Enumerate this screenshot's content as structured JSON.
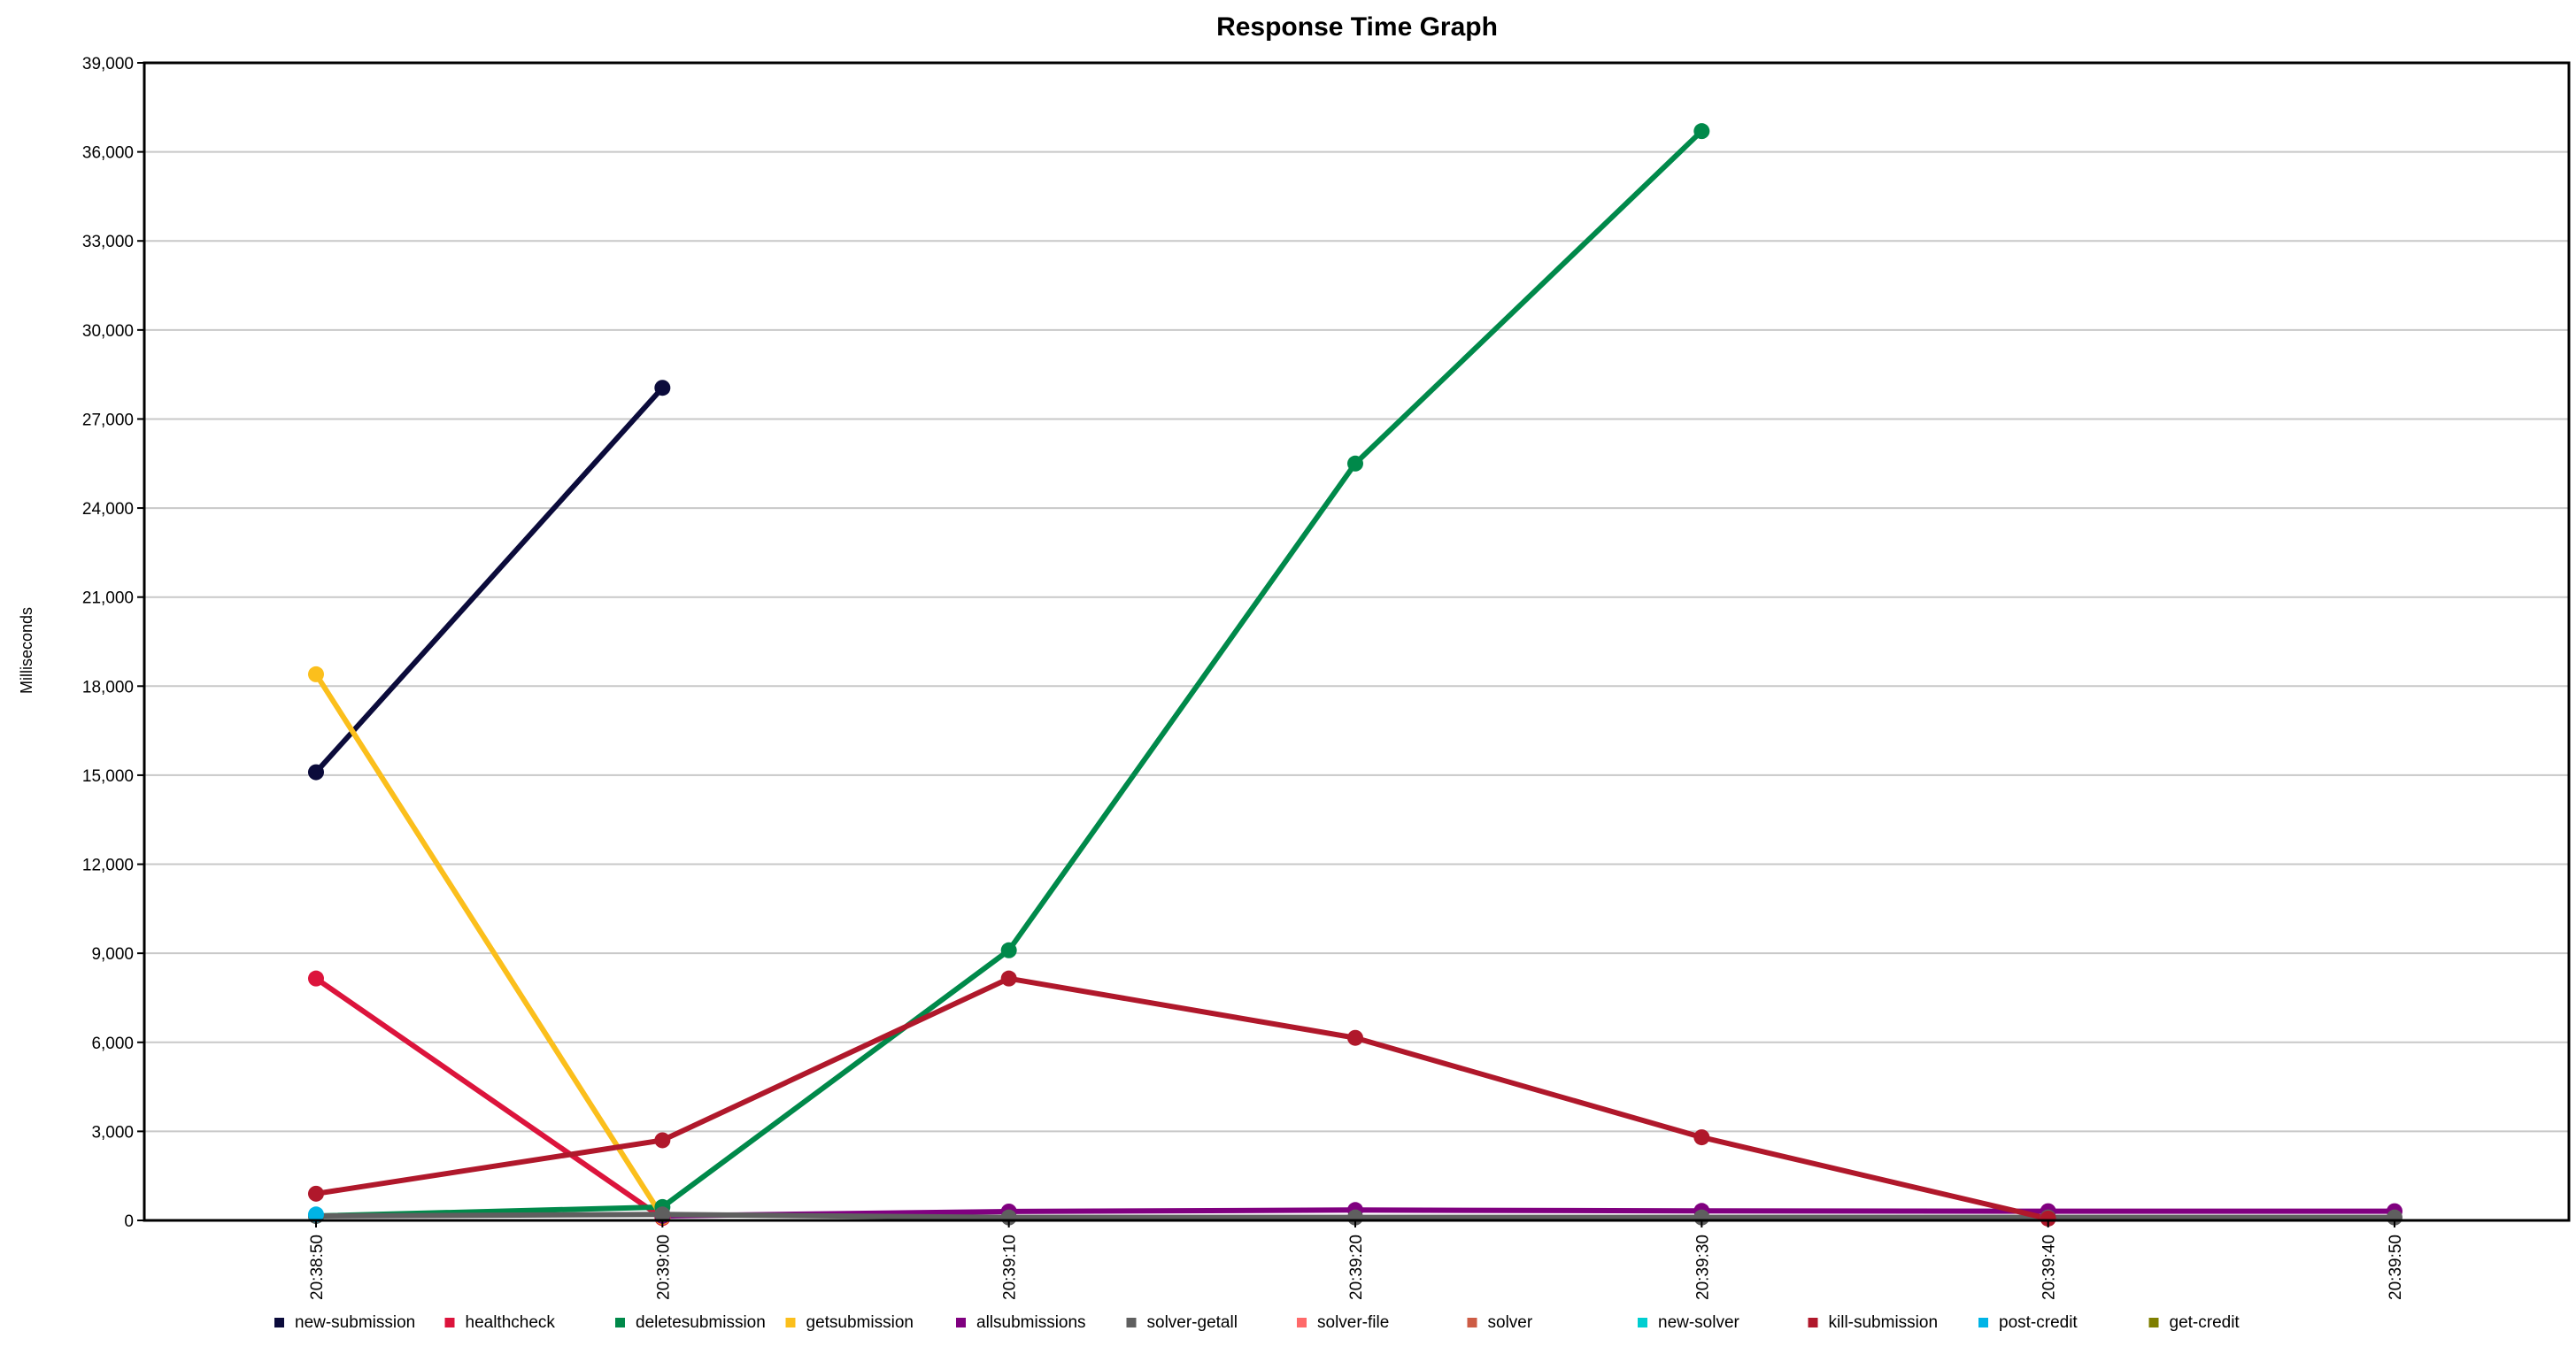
{
  "chart_data": {
    "type": "line",
    "title": "Response Time Graph",
    "xlabel": "",
    "ylabel": "Milliseconds",
    "categories": [
      "20:38:50",
      "20:39:00",
      "20:39:10",
      "20:39:20",
      "20:39:30",
      "20:39:40",
      "20:39:50"
    ],
    "ylim": [
      0,
      39000
    ],
    "yticks": [
      "0",
      "3,000",
      "6,000",
      "9,000",
      "12,000",
      "15,000",
      "18,000",
      "21,000",
      "24,000",
      "27,000",
      "30,000",
      "33,000",
      "36,000",
      "39,000"
    ],
    "grid": true,
    "legend_position": "bottom",
    "series": [
      {
        "name": "new-submission",
        "color": "#0b0b3b",
        "values": [
          15100,
          28050,
          null,
          null,
          null,
          null,
          null
        ]
      },
      {
        "name": "healthcheck",
        "color": "#dc143c",
        "values": [
          8150,
          80,
          null,
          null,
          null,
          null,
          null
        ]
      },
      {
        "name": "deletesubmission",
        "color": "#00894a",
        "values": [
          150,
          450,
          9100,
          25500,
          36700,
          null,
          null
        ]
      },
      {
        "name": "getsubmission",
        "color": "#fbbf1c",
        "values": [
          18400,
          120,
          null,
          null,
          null,
          null,
          null
        ]
      },
      {
        "name": "allsubmissions",
        "color": "#800080",
        "values": [
          null,
          150,
          300,
          350,
          320,
          310,
          310
        ]
      },
      {
        "name": "solver-getall",
        "color": "#5f5f5f",
        "values": [
          150,
          200,
          100,
          100,
          100,
          100,
          100
        ]
      },
      {
        "name": "solver-file",
        "color": "#ff6a6a",
        "values": [
          null,
          null,
          null,
          null,
          null,
          null,
          null
        ]
      },
      {
        "name": "solver",
        "color": "#cd5c45",
        "values": [
          null,
          null,
          null,
          null,
          null,
          null,
          null
        ]
      },
      {
        "name": "new-solver",
        "color": "#00ced1",
        "values": [
          null,
          null,
          null,
          null,
          null,
          null,
          null
        ]
      },
      {
        "name": "kill-submission",
        "color": "#b0182b",
        "values": [
          900,
          2700,
          8150,
          6150,
          2800,
          60,
          null
        ]
      },
      {
        "name": "post-credit",
        "color": "#00b4e6",
        "values": [
          200,
          null,
          null,
          null,
          null,
          null,
          null
        ]
      },
      {
        "name": "get-credit",
        "color": "#7f7f00",
        "values": [
          null,
          null,
          null,
          null,
          null,
          null,
          null
        ]
      }
    ]
  }
}
